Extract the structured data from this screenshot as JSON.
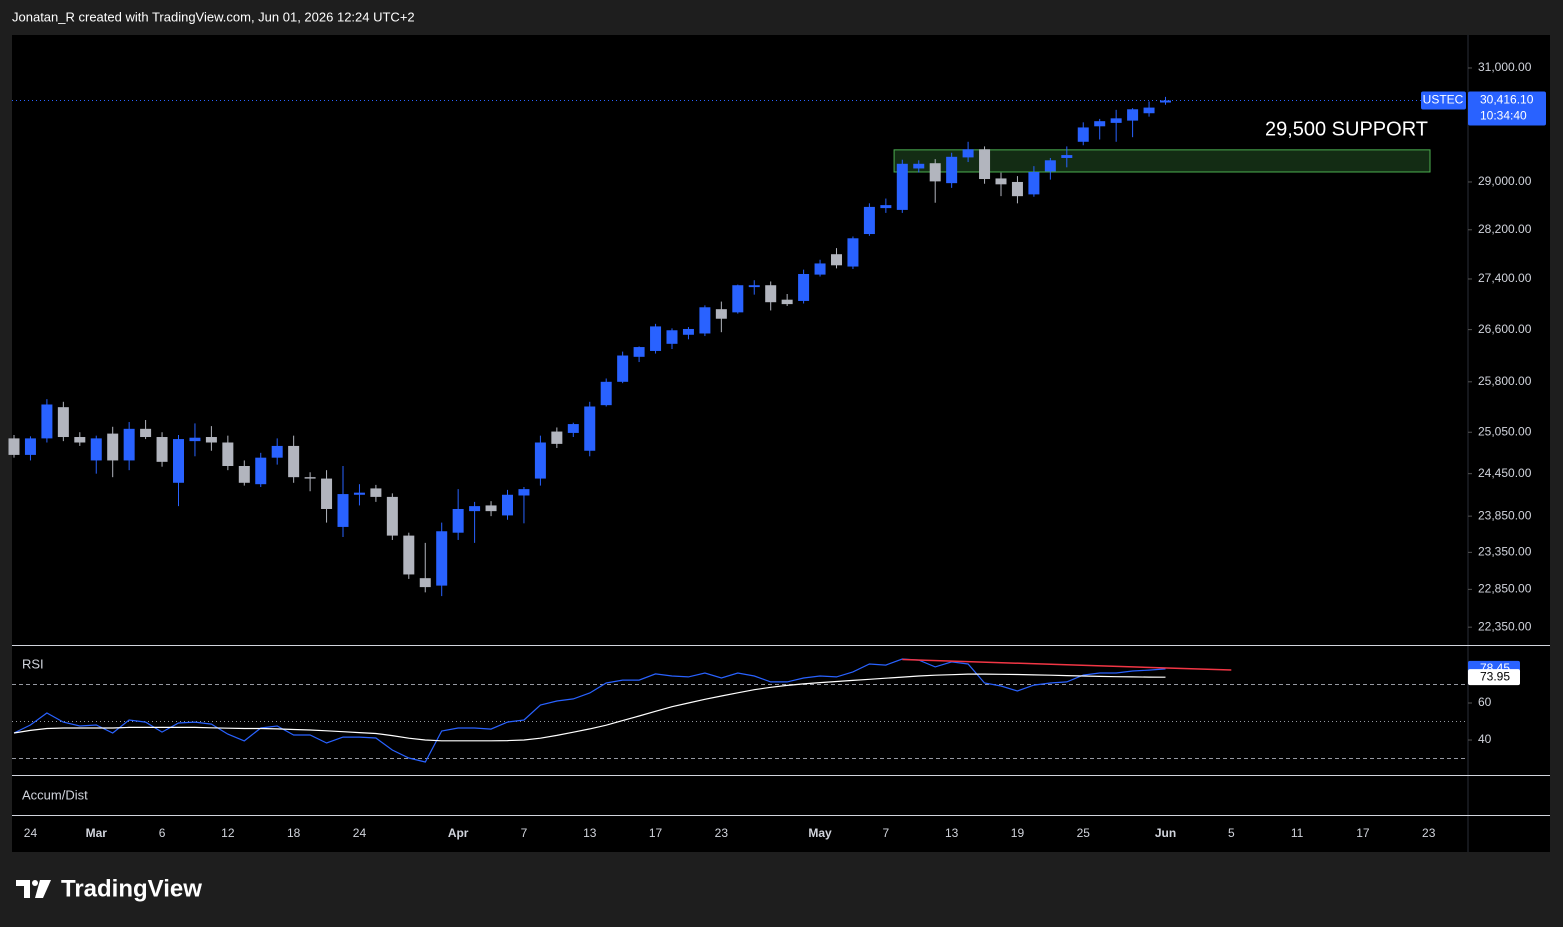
{
  "header": "Jonatan_R created with TradingView.com, Jun 01, 2026 12:24 UTC+2",
  "brand": "TradingView",
  "chart_data": [
    {
      "type": "candlestick",
      "symbol": "USTEC",
      "countdown": "10:34:40",
      "last_price": {
        "value": 30416.1,
        "label": "30,416.10"
      },
      "annotation": "29,500 SUPPORT",
      "support_zone": [
        29170,
        29550
      ],
      "up_color": "#2962ff",
      "down_color": "#b2b5be",
      "zone_color": "#4caf50",
      "log_scale": true,
      "grid": false,
      "ylim": [
        22118,
        31604
      ],
      "yticks": [
        {
          "value": 31000,
          "label": "31,000.00"
        },
        {
          "value": 29000,
          "label": "29,000.00"
        },
        {
          "value": 28200,
          "label": "28,200.00"
        },
        {
          "value": 27400,
          "label": "27,400.00"
        },
        {
          "value": 26600,
          "label": "26,600.00"
        },
        {
          "value": 25800,
          "label": "25,800.00"
        },
        {
          "value": 25050,
          "label": "25,050.00"
        },
        {
          "value": 24450,
          "label": "24,450.00"
        },
        {
          "value": 23850,
          "label": "23,850.00"
        },
        {
          "value": 23350,
          "label": "23,350.00"
        },
        {
          "value": 22850,
          "label": "22,850.00"
        },
        {
          "value": 22350,
          "label": "22,350.00"
        }
      ],
      "categories": [
        null,
        "24",
        null,
        null,
        null,
        "Mar",
        null,
        null,
        null,
        "6",
        null,
        null,
        null,
        "12",
        null,
        null,
        null,
        "18",
        null,
        null,
        null,
        "24",
        null,
        null,
        null,
        null,
        null,
        "Apr",
        null,
        null,
        null,
        "7",
        null,
        null,
        null,
        "13",
        null,
        null,
        null,
        "17",
        null,
        null,
        null,
        "23",
        null,
        null,
        null,
        null,
        null,
        "May",
        null,
        null,
        null,
        "7",
        null,
        null,
        null,
        "13",
        null,
        null,
        null,
        "19",
        null,
        null,
        null,
        "25",
        null,
        null,
        null,
        null,
        "Jun",
        null,
        null,
        null,
        "5",
        null,
        null,
        null,
        "11",
        null,
        null,
        null,
        "17",
        null,
        null,
        null,
        "23",
        null,
        null
      ],
      "open": [
        24960,
        24720,
        24960,
        25420,
        24980,
        24640,
        25030,
        24640,
        25100,
        24980,
        24320,
        24920,
        24980,
        24900,
        24560,
        24300,
        24680,
        24850,
        24400,
        24380,
        23700,
        24150,
        24240,
        24120,
        23580,
        23000,
        22900,
        23620,
        23920,
        24000,
        23860,
        24140,
        24380,
        25060,
        25040,
        24780,
        25450,
        25800,
        26180,
        26270,
        26380,
        26520,
        26540,
        26920,
        26870,
        27270,
        27300,
        27070,
        27050,
        27470,
        27800,
        27600,
        28130,
        28560,
        28530,
        29230,
        29320,
        28980,
        29420,
        29560,
        29060,
        29000,
        28790,
        29180,
        29410,
        29690,
        29960,
        30020,
        30060,
        30190,
        30380,
        null,
        null,
        null,
        null,
        null,
        null,
        null,
        null,
        null,
        null,
        null,
        null,
        null,
        null,
        null,
        null,
        null,
        null
      ],
      "high": [
        25010,
        24990,
        25540,
        25500,
        25050,
        25000,
        25130,
        25200,
        25230,
        25050,
        25010,
        25180,
        25140,
        25000,
        24640,
        24750,
        24960,
        25000,
        24470,
        24500,
        24560,
        24300,
        24290,
        24170,
        23620,
        23480,
        23760,
        24230,
        24050,
        24060,
        24220,
        24260,
        25000,
        25120,
        25190,
        25500,
        25850,
        26260,
        26340,
        26690,
        26620,
        26640,
        26980,
        27040,
        27310,
        27380,
        27360,
        27160,
        27550,
        27710,
        27900,
        28090,
        28640,
        28720,
        29380,
        29370,
        29390,
        29500,
        29690,
        29610,
        29160,
        29100,
        29270,
        29410,
        29610,
        30030,
        30090,
        30250,
        30280,
        30400,
        30480,
        null,
        null,
        null,
        null,
        null,
        null,
        null,
        null,
        null,
        null,
        null,
        null,
        null,
        null,
        null,
        null,
        null,
        null
      ],
      "low": [
        24680,
        24640,
        24900,
        24920,
        24850,
        24450,
        24400,
        24500,
        24950,
        24550,
        23990,
        24700,
        24780,
        24500,
        24280,
        24260,
        24580,
        24320,
        24200,
        23760,
        23560,
        24000,
        24050,
        23520,
        22990,
        22810,
        22760,
        23520,
        23480,
        23850,
        23800,
        23750,
        24280,
        24820,
        24980,
        24700,
        25430,
        25780,
        26100,
        26230,
        26300,
        26450,
        26500,
        26560,
        26850,
        27150,
        26900,
        26970,
        27010,
        27440,
        27570,
        27560,
        28100,
        28480,
        28480,
        29160,
        28650,
        28900,
        29340,
        28970,
        28760,
        28640,
        28750,
        29040,
        29250,
        29630,
        29730,
        29690,
        29770,
        30130,
        30340,
        null,
        null,
        null,
        null,
        null,
        null,
        null,
        null,
        null,
        null,
        null,
        null,
        null,
        null,
        null,
        null,
        null,
        null
      ],
      "close": [
        24720,
        24960,
        25460,
        24980,
        24900,
        24960,
        24640,
        25100,
        24980,
        24620,
        24950,
        24970,
        24900,
        24560,
        24320,
        24680,
        24850,
        24400,
        24380,
        23950,
        24160,
        24180,
        24120,
        23580,
        23050,
        22880,
        23640,
        23950,
        23990,
        23920,
        24150,
        24230,
        24900,
        24880,
        25170,
        25430,
        25800,
        26200,
        26330,
        26650,
        26590,
        26610,
        26950,
        26770,
        27300,
        27300,
        27030,
        27000,
        27480,
        27650,
        27620,
        28060,
        28580,
        28610,
        29310,
        29310,
        29010,
        29430,
        29560,
        29050,
        28960,
        28760,
        29170,
        29370,
        29460,
        29940,
        30050,
        30100,
        30260,
        30290,
        30416.1,
        null,
        null,
        null,
        null,
        null,
        null,
        null,
        null,
        null,
        null,
        null,
        null,
        null,
        null,
        null,
        null,
        null,
        null
      ]
    },
    {
      "type": "line",
      "title": "RSI",
      "ylim": [
        21.1,
        90.8
      ],
      "yticks": [
        60,
        40
      ],
      "bands": [
        30,
        50,
        70
      ],
      "trendline": {
        "color": "#f23645",
        "values": [
          83.5,
          77.8
        ]
      },
      "series": [
        {
          "color": "#2962ff",
          "values": [
            43.8,
            48.1,
            54.6,
            49.7,
            47.6,
            48.1,
            43.8,
            50.8,
            49.7,
            44.3,
            49.2,
            49.7,
            48.6,
            43.2,
            39.5,
            46.5,
            47.6,
            42.7,
            42.7,
            38.4,
            41.6,
            41.6,
            41.1,
            34.6,
            30.3,
            28.1,
            44.9,
            46.5,
            46.5,
            45.9,
            49.7,
            50.8,
            58.9,
            61.1,
            62.2,
            65.4,
            70.8,
            72.4,
            72.4,
            75.7,
            74.6,
            74.1,
            76.2,
            73.5,
            76.2,
            74.6,
            71.4,
            71.4,
            73.5,
            74.6,
            74.1,
            76.8,
            81.1,
            80.5,
            83.8,
            83.2,
            79.5,
            82.2,
            81.1,
            70.8,
            69.2,
            66.5,
            69.7,
            70.8,
            71.4,
            75.1,
            76.2,
            76.2,
            77.3,
            77.8,
            78.45,
            null,
            null,
            null,
            null,
            null,
            null,
            null,
            null,
            null,
            null,
            null,
            null,
            null,
            null,
            null,
            null,
            null,
            null
          ]
        },
        {
          "color": "#ffffff",
          "values": [
            43.8,
            45.2,
            46.2,
            46.5,
            46.5,
            46.5,
            46.5,
            46.8,
            46.8,
            46.8,
            46.8,
            46.8,
            46.6,
            46.4,
            46.2,
            46.2,
            46.0,
            45.7,
            45.4,
            45.0,
            44.5,
            44.0,
            43.5,
            42.4,
            41.0,
            40.0,
            39.6,
            39.6,
            39.6,
            39.6,
            39.7,
            40.0,
            41.0,
            42.5,
            44.2,
            46.0,
            48.0,
            50.5,
            53.0,
            55.5,
            58.0,
            60.0,
            62.0,
            63.8,
            65.5,
            67.2,
            68.5,
            69.5,
            70.3,
            71.0,
            71.6,
            72.2,
            72.8,
            73.4,
            74.0,
            74.6,
            75.0,
            75.3,
            75.6,
            75.6,
            75.5,
            75.4,
            75.2,
            75.0,
            74.8,
            74.6,
            74.4,
            74.2,
            74.1,
            74.0,
            73.95,
            null,
            null,
            null,
            null,
            null,
            null,
            null,
            null,
            null,
            null,
            null,
            null,
            null,
            null,
            null,
            null,
            null,
            null
          ]
        }
      ]
    },
    {
      "type": "line",
      "title": "Accum/Dist"
    }
  ]
}
